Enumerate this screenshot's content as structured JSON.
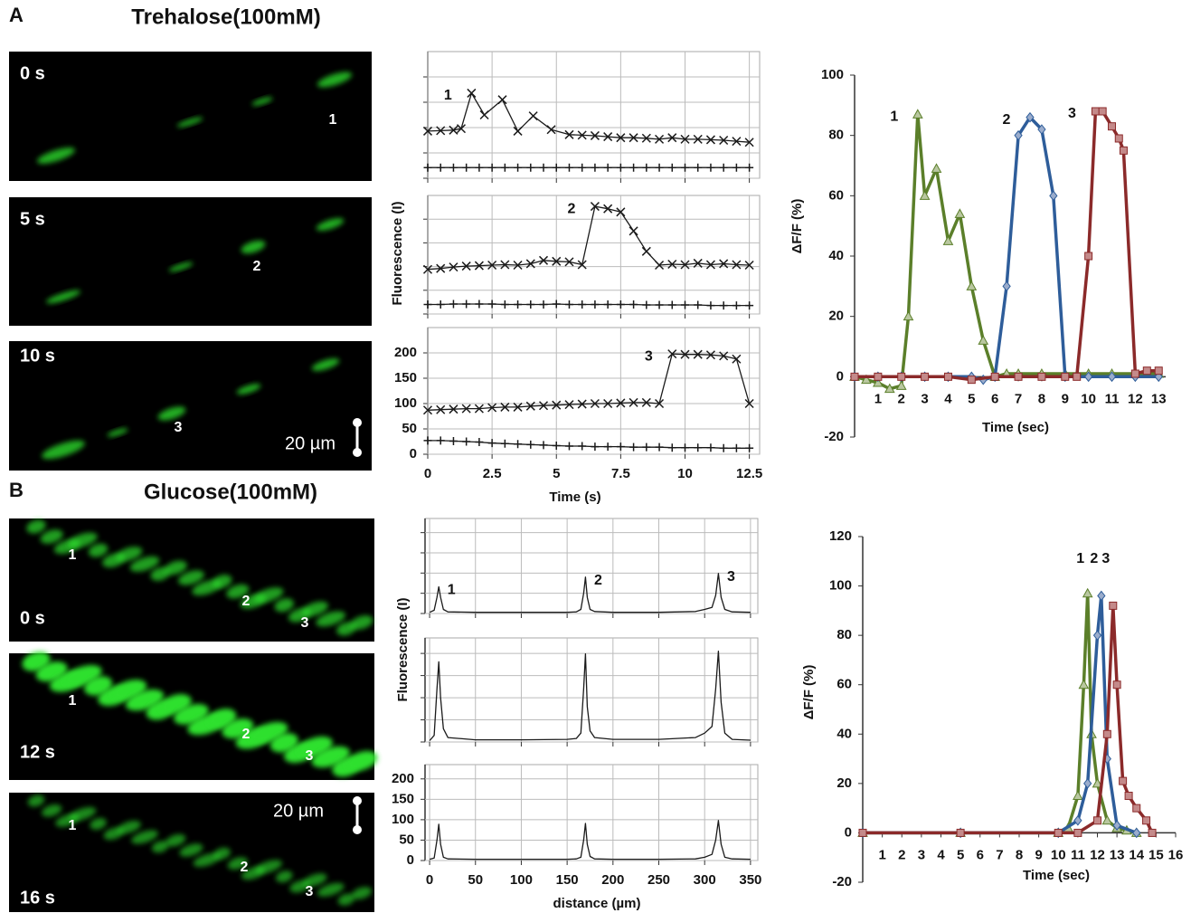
{
  "panels": [
    {
      "letter": "A",
      "title": "Trehalose(100mM)",
      "scale_bar": "20 µm",
      "images": [
        {
          "time": "0 s",
          "cells": [
            "1"
          ]
        },
        {
          "time": "5 s",
          "cells": [
            "2"
          ]
        },
        {
          "time": "10 s",
          "cells": [
            "3"
          ]
        }
      ]
    },
    {
      "letter": "B",
      "title": "Glucose(100mM)",
      "scale_bar": "20 µm",
      "images": [
        {
          "time": "0 s",
          "cells": [
            "1",
            "2",
            "3"
          ]
        },
        {
          "time": "12 s",
          "cells": [
            "1",
            "2",
            "3"
          ]
        },
        {
          "time": "16 s",
          "cells": [
            "1",
            "2",
            "3"
          ]
        }
      ]
    }
  ],
  "chart_data": [
    {
      "type": "line",
      "axes": "box",
      "xlim": [
        0,
        12.9
      ],
      "ylim": [
        0,
        250
      ],
      "xticks": [
        0,
        2.5,
        5,
        7.5,
        10,
        12.5
      ],
      "yticks": [
        0,
        50,
        100,
        150,
        200
      ],
      "grid": true,
      "tick_labels": false,
      "series": [
        {
          "name": "1",
          "color": "#1a1a1a",
          "marker": "x",
          "x": [
            0,
            0.5,
            1,
            1.3,
            1.7,
            2.2,
            2.9,
            3.5,
            4.1,
            4.8,
            5.5,
            6,
            6.5,
            7,
            7.5,
            8,
            8.5,
            9,
            9.5,
            10,
            10.5,
            11,
            11.5,
            12,
            12.5
          ],
          "values": [
            93,
            94,
            95,
            98,
            168,
            125,
            155,
            93,
            123,
            96,
            86,
            85,
            84,
            82,
            80,
            80,
            79,
            77,
            80,
            77,
            77,
            76,
            75,
            73,
            71
          ]
        },
        {
          "color": "#1a1a1a",
          "marker": "+",
          "x": [
            0,
            0.5,
            1,
            1.5,
            2,
            2.5,
            3,
            3.5,
            4,
            4.5,
            5,
            5.5,
            6,
            6.5,
            7,
            7.5,
            8,
            8.5,
            9,
            9.5,
            10,
            10.5,
            11,
            11.5,
            12,
            12.5
          ],
          "values": [
            21,
            21,
            21,
            21,
            21,
            21,
            21,
            21,
            21,
            21,
            21,
            21,
            21,
            21,
            21,
            21,
            21,
            21,
            21,
            21,
            21,
            21,
            21,
            21,
            21,
            21
          ]
        }
      ]
    },
    {
      "type": "line",
      "axes": "box",
      "xlim": [
        0,
        12.9
      ],
      "ylim": [
        0,
        250
      ],
      "xticks": [
        0,
        2.5,
        5,
        7.5,
        10,
        12.5
      ],
      "yticks": [
        0,
        50,
        100,
        150,
        200
      ],
      "grid": true,
      "tick_labels": false,
      "y_label": "Fluorescence (I)",
      "series": [
        {
          "name": "2",
          "color": "#1a1a1a",
          "marker": "x",
          "x": [
            0,
            0.5,
            1,
            1.5,
            2,
            2.5,
            3,
            3.5,
            4,
            4.5,
            5,
            5.5,
            6,
            6.5,
            7,
            7.5,
            8,
            8.5,
            9,
            9.5,
            10,
            10.5,
            11,
            11.5,
            12,
            12.5
          ],
          "values": [
            94,
            96,
            99,
            101,
            102,
            103,
            104,
            103,
            106,
            113,
            111,
            110,
            104,
            227,
            222,
            215,
            175,
            132,
            103,
            105,
            104,
            107,
            104,
            106,
            104,
            103
          ]
        },
        {
          "color": "#1a1a1a",
          "marker": "+",
          "x": [
            0,
            0.5,
            1,
            1.5,
            2,
            2.5,
            3,
            3.5,
            4,
            4.5,
            5,
            5.5,
            6,
            6.5,
            7,
            7.5,
            8,
            8.5,
            9,
            9.5,
            10,
            10.5,
            11,
            11.5,
            12,
            12.5
          ],
          "values": [
            20,
            20,
            21,
            21,
            21,
            21,
            20,
            20,
            20,
            20,
            21,
            20,
            20,
            20,
            20,
            20,
            20,
            19,
            19,
            19,
            19,
            19,
            18,
            18,
            18,
            18
          ]
        }
      ]
    },
    {
      "type": "line",
      "axes": "box",
      "xlim": [
        0,
        12.9
      ],
      "ylim": [
        0,
        250
      ],
      "xticks": [
        0,
        2.5,
        5,
        7.5,
        10,
        12.5
      ],
      "yticks": [
        0,
        50,
        100,
        150,
        200
      ],
      "grid": true,
      "x_label": "Time (s)",
      "series": [
        {
          "name": "3",
          "color": "#1a1a1a",
          "marker": "x",
          "x": [
            0,
            0.5,
            1,
            1.5,
            2,
            2.5,
            3,
            3.5,
            4,
            4.5,
            5,
            5.5,
            6,
            6.5,
            7,
            7.5,
            8,
            8.5,
            9,
            9.5,
            10,
            10.5,
            11,
            11.5,
            12,
            12.5
          ],
          "values": [
            87,
            88,
            89,
            90,
            90,
            92,
            93,
            93,
            95,
            96,
            97,
            98,
            99,
            100,
            100,
            101,
            102,
            102,
            100,
            198,
            197,
            197,
            196,
            194,
            188,
            100
          ]
        },
        {
          "color": "#1a1a1a",
          "marker": "+",
          "x": [
            0,
            0.5,
            1,
            1.5,
            2,
            2.5,
            3,
            3.5,
            4,
            4.5,
            5,
            5.5,
            6,
            6.5,
            7,
            7.5,
            8,
            8.5,
            9,
            9.5,
            10,
            10.5,
            11,
            11.5,
            12,
            12.5
          ],
          "values": [
            27,
            27,
            26,
            25,
            24,
            22,
            21,
            20,
            19,
            18,
            17,
            16,
            16,
            15,
            15,
            15,
            14,
            14,
            14,
            13,
            13,
            13,
            13,
            12,
            12,
            12
          ]
        }
      ]
    },
    {
      "type": "line",
      "axes": "origin",
      "xlim": [
        0,
        13.3
      ],
      "ylim": [
        -20,
        100
      ],
      "xticks": [
        1,
        2,
        3,
        4,
        5,
        6,
        7,
        8,
        9,
        10,
        11,
        12,
        13
      ],
      "yticks": [
        -20,
        0,
        20,
        40,
        60,
        80,
        100
      ],
      "x_label": "Time (sec)",
      "y_label": "ΔF/F (%)",
      "series": [
        {
          "name": "1",
          "color": "#5b7f2a",
          "marker": "triangle",
          "x": [
            0,
            0.5,
            1,
            1.5,
            2,
            2.3,
            2.7,
            3,
            3.5,
            4,
            4.5,
            5,
            5.5,
            6,
            6.5,
            7,
            8,
            9,
            10,
            11,
            12,
            13
          ],
          "values": [
            0,
            -1,
            -2,
            -4,
            -3,
            20,
            87,
            60,
            69,
            45,
            54,
            30,
            12,
            0,
            1,
            1,
            1,
            1,
            1,
            1,
            1,
            1
          ]
        },
        {
          "name": "2",
          "color": "#2e5d9a",
          "marker": "diamond",
          "x": [
            0,
            1,
            2,
            3,
            4,
            5,
            5.5,
            6,
            6.5,
            7,
            7.5,
            8,
            8.5,
            9,
            10,
            11,
            12,
            13
          ],
          "values": [
            0,
            0,
            0,
            0,
            0,
            0,
            -1,
            0,
            30,
            80,
            86,
            82,
            60,
            0,
            0,
            0,
            0,
            0
          ]
        },
        {
          "name": "3",
          "color": "#8b2a2a",
          "marker": "square",
          "x": [
            0,
            1,
            2,
            3,
            4,
            5,
            6,
            7,
            8,
            9,
            9.5,
            10,
            10.3,
            10.6,
            11,
            11.3,
            11.5,
            12,
            12.5,
            13
          ],
          "values": [
            0,
            0,
            0,
            0,
            0,
            -1,
            0,
            0,
            0,
            0,
            0,
            40,
            88,
            88,
            83,
            79,
            75,
            1,
            2,
            2
          ]
        }
      ]
    },
    {
      "type": "line",
      "axes": "box",
      "xlim": [
        -5,
        358
      ],
      "ylim": [
        0,
        235
      ],
      "xticks": [
        0,
        50,
        100,
        150,
        200,
        250,
        300,
        350
      ],
      "yticks": [
        0,
        50,
        100,
        150,
        200
      ],
      "grid": true,
      "tick_labels": false,
      "peak_labels": [
        "1",
        "2",
        "3"
      ],
      "series": [
        {
          "color": "#1a1a1a",
          "x": [
            0,
            5,
            8,
            10,
            12,
            15,
            20,
            50,
            100,
            150,
            160,
            165,
            168,
            170,
            172,
            175,
            180,
            200,
            250,
            290,
            300,
            308,
            312,
            315,
            318,
            322,
            330,
            350
          ],
          "values": [
            3,
            8,
            40,
            66,
            40,
            10,
            4,
            3,
            3,
            3,
            4,
            10,
            50,
            90,
            40,
            10,
            5,
            3,
            3,
            5,
            10,
            15,
            45,
            99,
            40,
            10,
            4,
            3
          ]
        }
      ]
    },
    {
      "type": "line",
      "axes": "box",
      "xlim": [
        -5,
        358
      ],
      "ylim": [
        0,
        235
      ],
      "xticks": [
        0,
        50,
        100,
        150,
        200,
        250,
        300,
        350
      ],
      "yticks": [
        0,
        50,
        100,
        150,
        200
      ],
      "grid": true,
      "tick_labels": false,
      "y_label": "Fluorescence (I)",
      "series": [
        {
          "color": "#1a1a1a",
          "x": [
            0,
            5,
            8,
            10,
            12,
            15,
            20,
            50,
            100,
            150,
            160,
            165,
            168,
            170,
            172,
            175,
            180,
            200,
            250,
            290,
            300,
            308,
            312,
            315,
            318,
            322,
            330,
            350
          ],
          "values": [
            3,
            15,
            120,
            181,
            100,
            30,
            10,
            5,
            5,
            6,
            8,
            20,
            120,
            199,
            80,
            25,
            10,
            6,
            6,
            10,
            20,
            35,
            120,
            205,
            90,
            20,
            6,
            4
          ]
        }
      ]
    },
    {
      "type": "line",
      "axes": "box",
      "xlim": [
        -5,
        358
      ],
      "ylim": [
        0,
        235
      ],
      "xticks": [
        0,
        50,
        100,
        150,
        200,
        250,
        300,
        350
      ],
      "yticks": [
        0,
        50,
        100,
        150,
        200
      ],
      "grid": true,
      "x_label": "distance (µm)",
      "series": [
        {
          "color": "#1a1a1a",
          "x": [
            0,
            5,
            8,
            10,
            12,
            15,
            20,
            50,
            100,
            150,
            160,
            165,
            168,
            170,
            172,
            175,
            180,
            200,
            250,
            290,
            300,
            308,
            312,
            315,
            318,
            322,
            330,
            350
          ],
          "values": [
            3,
            6,
            50,
            89,
            40,
            8,
            4,
            3,
            3,
            3,
            4,
            8,
            50,
            91,
            40,
            10,
            4,
            3,
            3,
            4,
            8,
            15,
            50,
            98,
            40,
            8,
            4,
            3
          ]
        }
      ]
    },
    {
      "type": "line",
      "axes": "origin",
      "xlim": [
        0,
        16
      ],
      "ylim": [
        -20,
        120
      ],
      "xticks": [
        1,
        2,
        3,
        4,
        5,
        6,
        7,
        8,
        9,
        10,
        11,
        12,
        13,
        14,
        15,
        16
      ],
      "yticks": [
        -20,
        0,
        20,
        40,
        60,
        80,
        100,
        120
      ],
      "x_label": "Time (sec)",
      "y_label": "ΔF/F (%)",
      "series": [
        {
          "name": "1",
          "color": "#5b7f2a",
          "marker": "triangle",
          "x": [
            0,
            5,
            10,
            10.5,
            11,
            11.3,
            11.5,
            11.7,
            12,
            12.5,
            13,
            13.5,
            14
          ],
          "values": [
            0,
            0,
            0,
            2,
            15,
            60,
            97,
            40,
            20,
            5,
            2,
            1,
            0
          ]
        },
        {
          "name": "2",
          "color": "#2e5d9a",
          "marker": "diamond",
          "x": [
            0,
            5,
            10,
            11,
            11.5,
            12,
            12.2,
            12.5,
            13,
            14
          ],
          "values": [
            0,
            0,
            0,
            5,
            20,
            80,
            96,
            30,
            3,
            0
          ]
        },
        {
          "name": "3",
          "color": "#8b2a2a",
          "marker": "square",
          "x": [
            0,
            5,
            10,
            11,
            12,
            12.5,
            12.8,
            13,
            13.3,
            13.6,
            14,
            14.5,
            14.8
          ],
          "values": [
            0,
            0,
            0,
            0,
            5,
            40,
            92,
            60,
            21,
            15,
            10,
            5,
            0
          ]
        }
      ]
    }
  ]
}
